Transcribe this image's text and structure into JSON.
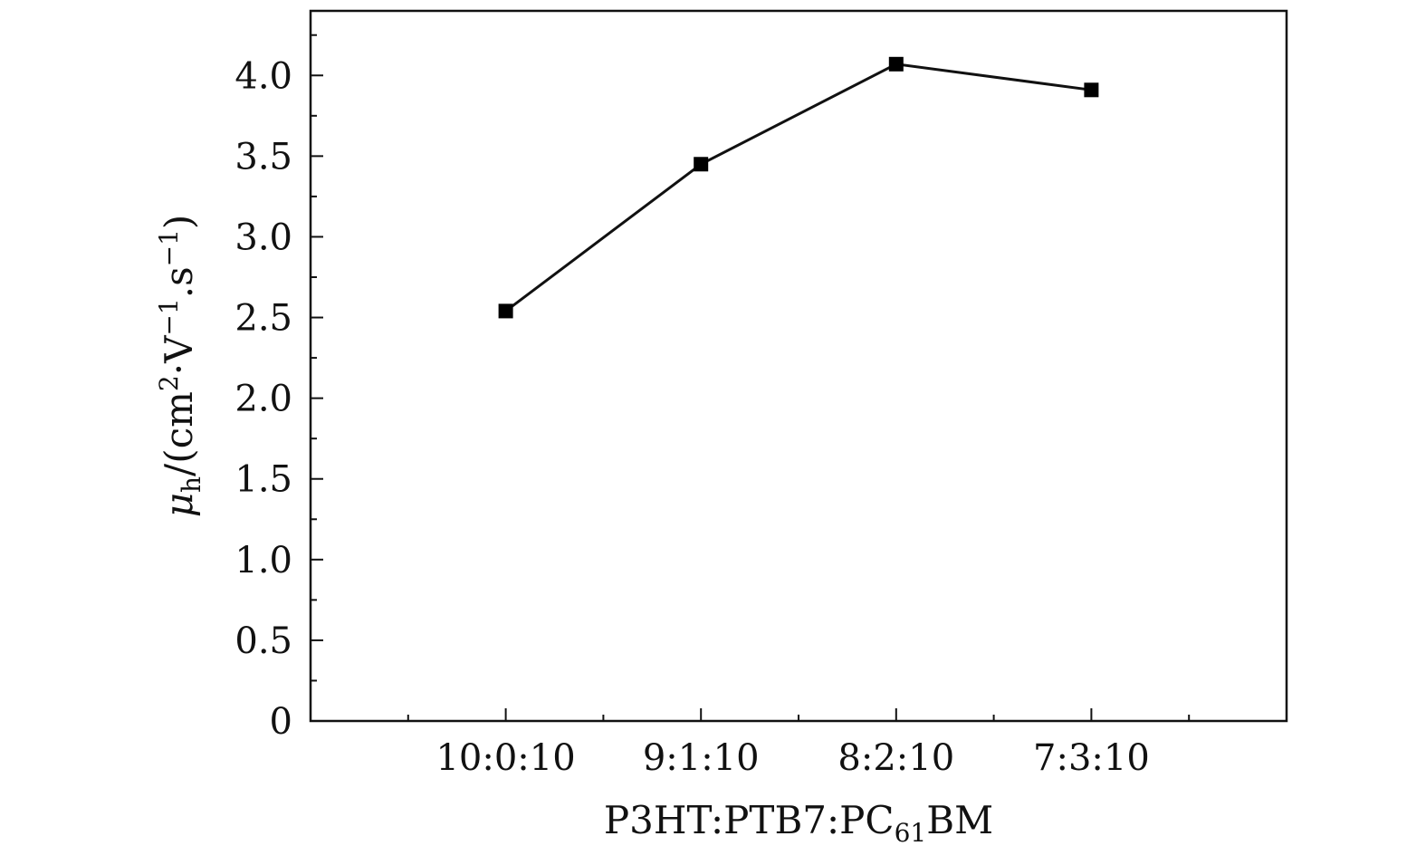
{
  "chart_data": {
    "type": "line",
    "categories": [
      "10:0:10",
      "9:1:10",
      "8:2:10",
      "7:3:10"
    ],
    "series": [
      {
        "values": [
          2.54,
          3.45,
          4.07,
          3.91
        ]
      }
    ],
    "xlabel": {
      "base": "P3HT:PTB7:PC",
      "sub": "61",
      "tail": "BM"
    },
    "ylabel": {
      "mu": "μ",
      "mu_sub": "h",
      "slash": "/(cm",
      "sup1": "2",
      "mid": "·V",
      "sup2": "−1",
      "mid2": ".s",
      "sup3": "−1",
      "end": ")"
    },
    "ylim": [
      0,
      4.4
    ],
    "yticks": [
      0,
      0.5,
      1.0,
      1.5,
      2.0,
      2.5,
      3.0,
      3.5,
      4.0
    ],
    "ytick_labels": [
      "0",
      "0.5",
      "1.0",
      "1.5",
      "2.0",
      "2.5",
      "3.0",
      "3.5",
      "4.0"
    ],
    "marker": "square",
    "grid": false,
    "colors": {
      "line": "#111111",
      "marker": "#000000"
    }
  }
}
